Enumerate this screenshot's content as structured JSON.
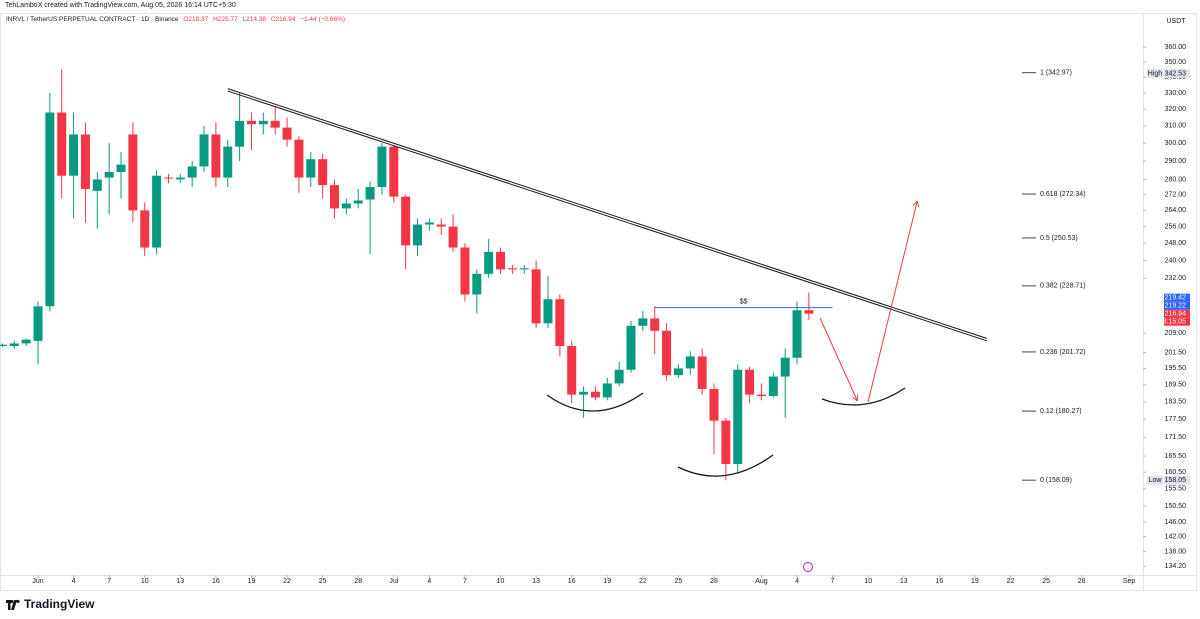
{
  "header": {
    "credit": "TehLamboX created with TradingView.com, Aug 05, 2026 16:14 UTC+5:30"
  },
  "footer": {
    "brand": "TradingView"
  },
  "chart_data": {
    "type": "candlestick",
    "title": "INRVL / TetherUS PERPETUAL CONTRACT · 1D · Binance",
    "ohlc": [
      "O218.37",
      "H225.77",
      "L214.38",
      "C216.94",
      "−1.44 (−0.66%)"
    ],
    "currency": "USDT",
    "up_color": "#089981",
    "down_color": "#f23645",
    "log_scale": true,
    "grid": false,
    "ylim": [
      132,
      372
    ],
    "yticks": [
      {
        "value": 360,
        "label": "360.00"
      },
      {
        "value": 350,
        "label": "350.00"
      },
      {
        "value": 340,
        "label": "340.00"
      },
      {
        "value": 330,
        "label": "330.00"
      },
      {
        "value": 320,
        "label": "320.00"
      },
      {
        "value": 310,
        "label": "310.00"
      },
      {
        "value": 300,
        "label": "300.00"
      },
      {
        "value": 290,
        "label": "290.00"
      },
      {
        "value": 280,
        "label": "280.00"
      },
      {
        "value": 272,
        "label": "272.00"
      },
      {
        "value": 264,
        "label": "264.00"
      },
      {
        "value": 256,
        "label": "256.00"
      },
      {
        "value": 248,
        "label": "248.00"
      },
      {
        "value": 240,
        "label": "240.00"
      },
      {
        "value": 232,
        "label": "232.00"
      },
      {
        "value": 209,
        "label": "209.00"
      },
      {
        "value": 201.5,
        "label": "201.50"
      },
      {
        "value": 195.5,
        "label": "195.50"
      },
      {
        "value": 189.5,
        "label": "189.50"
      },
      {
        "value": 183.5,
        "label": "183.50"
      },
      {
        "value": 177.5,
        "label": "177.50"
      },
      {
        "value": 171.5,
        "label": "171.50"
      },
      {
        "value": 165.5,
        "label": "165.50"
      },
      {
        "value": 160.5,
        "label": "160.50"
      },
      {
        "value": 155.5,
        "label": "155.50"
      },
      {
        "value": 150.5,
        "label": "150.50"
      },
      {
        "value": 146,
        "label": "146.00"
      },
      {
        "value": 142,
        "label": "142.00"
      },
      {
        "value": 138,
        "label": "138.00"
      },
      {
        "value": 134.2,
        "label": "134.20"
      }
    ],
    "xticks": [
      {
        "value": "Jun 1",
        "label": "Jun"
      },
      {
        "value": "Jun 4",
        "label": "4"
      },
      {
        "value": "Jun 7",
        "label": "7"
      },
      {
        "value": "Jun 10",
        "label": "10"
      },
      {
        "value": "Jun 13",
        "label": "13"
      },
      {
        "value": "Jun 16",
        "label": "16"
      },
      {
        "value": "Jun 19",
        "label": "19"
      },
      {
        "value": "Jun 22",
        "label": "22"
      },
      {
        "value": "Jun 25",
        "label": "25"
      },
      {
        "value": "Jun 28",
        "label": "28"
      },
      {
        "value": "Jul 1",
        "label": "Jul"
      },
      {
        "value": "Jul 4",
        "label": "4"
      },
      {
        "value": "Jul 7",
        "label": "7"
      },
      {
        "value": "Jul 10",
        "label": "10"
      },
      {
        "value": "Jul 13",
        "label": "13"
      },
      {
        "value": "Jul 16",
        "label": "16"
      },
      {
        "value": "Jul 19",
        "label": "19"
      },
      {
        "value": "Jul 22",
        "label": "22"
      },
      {
        "value": "Jul 25",
        "label": "25"
      },
      {
        "value": "Jul 28",
        "label": "28"
      },
      {
        "value": "Aug 1",
        "label": "Aug"
      },
      {
        "value": "Aug 4",
        "label": "4"
      },
      {
        "value": "Aug 7",
        "label": "7"
      },
      {
        "value": "Aug 10",
        "label": "10"
      },
      {
        "value": "Aug 13",
        "label": "13"
      },
      {
        "value": "Aug 16",
        "label": "16"
      },
      {
        "value": "Aug 19",
        "label": "19"
      },
      {
        "value": "Aug 22",
        "label": "22"
      },
      {
        "value": "Aug 25",
        "label": "25"
      },
      {
        "value": "Aug 28",
        "label": "28"
      },
      {
        "value": "Sep 1",
        "label": "Sep"
      }
    ],
    "x": [
      "May 29",
      "May 30",
      "May 31",
      "Jun 1",
      "Jun 2",
      "Jun 3",
      "Jun 4",
      "Jun 5",
      "Jun 6",
      "Jun 7",
      "Jun 8",
      "Jun 9",
      "Jun 10",
      "Jun 11",
      "Jun 12",
      "Jun 13",
      "Jun 14",
      "Jun 15",
      "Jun 16",
      "Jun 17",
      "Jun 18",
      "Jun 19",
      "Jun 20",
      "Jun 21",
      "Jun 22",
      "Jun 23",
      "Jun 24",
      "Jun 25",
      "Jun 26",
      "Jun 27",
      "Jun 28",
      "Jun 29",
      "Jun 30",
      "Jul 1",
      "Jul 2",
      "Jul 3",
      "Jul 4",
      "Jul 5",
      "Jul 6",
      "Jul 7",
      "Jul 8",
      "Jul 9",
      "Jul 10",
      "Jul 11",
      "Jul 12",
      "Jul 13",
      "Jul 14",
      "Jul 15",
      "Jul 16",
      "Jul 17",
      "Jul 18",
      "Jul 19",
      "Jul 20",
      "Jul 21",
      "Jul 22",
      "Jul 23",
      "Jul 24",
      "Jul 25",
      "Jul 26",
      "Jul 27",
      "Jul 28",
      "Jul 29",
      "Jul 30",
      "Jul 31",
      "Aug 1",
      "Aug 2",
      "Aug 3",
      "Aug 4",
      "Aug 5"
    ],
    "open": [
      204,
      204,
      205,
      206,
      220,
      318,
      282,
      305,
      274,
      281,
      284,
      305,
      264,
      246,
      281,
      280,
      281,
      287,
      305,
      281,
      298,
      313,
      311,
      313,
      309,
      302,
      281,
      291,
      277,
      265,
      267.5,
      269.5,
      276,
      298,
      271,
      247,
      257,
      257,
      256,
      246,
      225,
      234,
      244,
      236.5,
      236,
      236,
      213,
      223,
      204,
      186,
      187,
      185,
      190,
      195,
      212,
      215,
      210,
      193,
      195.5,
      200,
      188,
      177,
      163,
      195,
      186,
      185.5,
      192.5,
      199.5,
      218.37
    ],
    "high": [
      205,
      206,
      207,
      222,
      330,
      345,
      318,
      312,
      284,
      300,
      295,
      312,
      268,
      285,
      283,
      283,
      290,
      310,
      312,
      302,
      330,
      318,
      318,
      322,
      315,
      304,
      295,
      294,
      280,
      270,
      275,
      279,
      300,
      299,
      272,
      260,
      260,
      260,
      262,
      248,
      236,
      250,
      246,
      238,
      238,
      240,
      233,
      225,
      206,
      189,
      189,
      192,
      198,
      214,
      218,
      220,
      213,
      197,
      202,
      203,
      190,
      178,
      197,
      196,
      190,
      194,
      203,
      222,
      225.77
    ],
    "low": [
      203.5,
      203,
      204,
      197,
      218,
      270,
      260,
      258,
      255,
      262,
      270,
      258,
      242,
      243,
      278,
      278,
      276,
      284,
      276,
      276,
      290,
      296,
      305,
      305,
      298,
      273,
      276,
      270,
      260,
      262,
      265,
      243,
      272,
      268,
      236,
      242,
      254,
      252,
      244,
      222,
      217,
      232,
      234,
      234,
      234,
      211,
      211,
      200,
      183,
      178,
      184,
      184,
      189,
      194,
      210,
      201,
      191,
      192,
      193,
      186,
      166,
      158.05,
      160,
      183,
      184,
      185,
      178,
      197,
      214.38
    ],
    "close": [
      204.5,
      205,
      206.5,
      220,
      318,
      282,
      305,
      275,
      280,
      284,
      288,
      264,
      246,
      282,
      280.5,
      281,
      287,
      305,
      281,
      298,
      313,
      311,
      313,
      309,
      302,
      281,
      291,
      277,
      265,
      267.5,
      269,
      276,
      298,
      271,
      247,
      257,
      258,
      256,
      246,
      225,
      234,
      244,
      236,
      236,
      236.5,
      213,
      223,
      204,
      186,
      187,
      185,
      190,
      195,
      212,
      215,
      210,
      193,
      195.5,
      200,
      188,
      177,
      163,
      195,
      186,
      185.5,
      192.5,
      199.5,
      218.37,
      216.94
    ],
    "trendline": {
      "x": [
        "Jun 17",
        "Aug 20"
      ],
      "y": [
        332,
        206.5
      ],
      "color": "#131722"
    },
    "level": {
      "label": "$$",
      "value": 219.42,
      "x": [
        "Jul 23",
        "Aug 7"
      ],
      "color": "#2962ff"
    },
    "fib_levels": [
      {
        "value": 342.97,
        "label": "1 (342.97)"
      },
      {
        "value": 272.34,
        "label": "0.618 (272.34)"
      },
      {
        "value": 250.53,
        "label": "0.5 (250.53)"
      },
      {
        "value": 228.71,
        "label": "0.382 (228.71)"
      },
      {
        "value": 201.72,
        "label": "0.236 (201.72)"
      },
      {
        "value": 180.27,
        "label": "0.12 (180.27)"
      },
      {
        "value": 158.09,
        "label": "0 (158.09)"
      }
    ],
    "extreme_tags": [
      {
        "label": "High",
        "value": 342.53
      },
      {
        "label": "Low",
        "value": 158.05
      }
    ],
    "last_tags": [
      {
        "value": 219.42,
        "color": "#2962ff"
      },
      {
        "value": 219.22,
        "color": "#2962ff"
      },
      {
        "value": 216.94,
        "color": "#f23645"
      }
    ],
    "countdown": "13:15:05"
  }
}
